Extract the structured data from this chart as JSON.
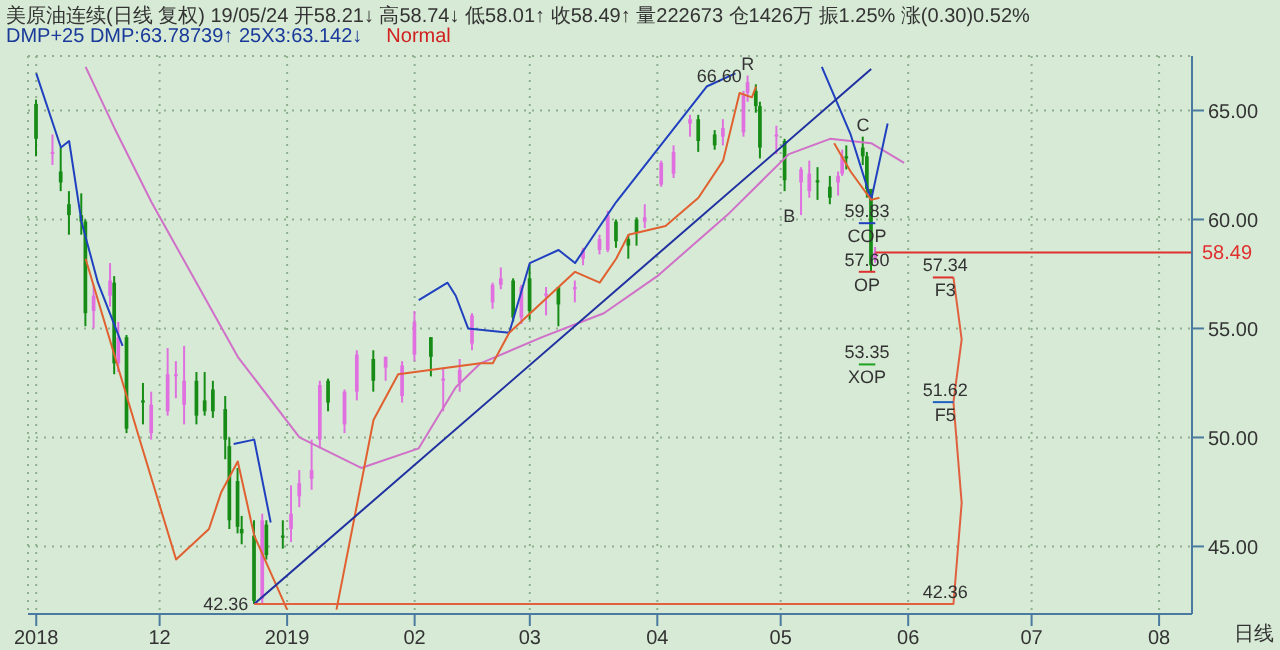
{
  "chart_data": {
    "type": "candlestick",
    "title": "美原油连续(日线 复权) 19/05/24 开58.21↓ 高58.74↓ 低58.01↑ 收58.49↑ 量222673 仓1426万 振1.25% 涨(0.30)0.52%",
    "subtitle": "DMP+25 DMP:63.78739↑ 25X3:63.142↓",
    "x": [
      "2018-11-01",
      "2018-11-05",
      "2018-11-07",
      "2018-11-09",
      "2018-11-12",
      "2018-11-13",
      "2018-11-15",
      "2018-11-19",
      "2018-11-20",
      "2018-11-21",
      "2018-11-23",
      "2018-11-27",
      "2018-11-29",
      "2018-12-03",
      "2018-12-05",
      "2018-12-07",
      "2018-12-10",
      "2018-12-12",
      "2018-12-14",
      "2018-12-17",
      "2018-12-18",
      "2018-12-20",
      "2018-12-21",
      "2018-12-24",
      "2018-12-26",
      "2018-12-27",
      "2018-12-31",
      "2019-01-02",
      "2019-01-04",
      "2019-01-07",
      "2019-01-09",
      "2019-01-11",
      "2019-01-15",
      "2019-01-18",
      "2019-01-22",
      "2019-01-25",
      "2019-01-29",
      "2019-02-01",
      "2019-02-05",
      "2019-02-08",
      "2019-02-12",
      "2019-02-15",
      "2019-02-20",
      "2019-02-22",
      "2019-02-25",
      "2019-02-27",
      "2019-03-01",
      "2019-03-05",
      "2019-03-08",
      "2019-03-12",
      "2019-03-14",
      "2019-03-18",
      "2019-03-20",
      "2019-03-22",
      "2019-03-25",
      "2019-03-27",
      "2019-03-29",
      "2019-04-02",
      "2019-04-05",
      "2019-04-09",
      "2019-04-11",
      "2019-04-15",
      "2019-04-17",
      "2019-04-22",
      "2019-04-23",
      "2019-04-25",
      "2019-04-26",
      "2019-04-30",
      "2019-05-02",
      "2019-05-06",
      "2019-05-08",
      "2019-05-10",
      "2019-05-13",
      "2019-05-15",
      "2019-05-16",
      "2019-05-17",
      "2019-05-21",
      "2019-05-22",
      "2019-05-23",
      "2019-05-24"
    ],
    "ohlc": [
      [
        65.3,
        65.5,
        62.9,
        63.7
      ],
      [
        63.1,
        63.9,
        62.5,
        63.1
      ],
      [
        62.2,
        63.3,
        61.3,
        61.7
      ],
      [
        60.7,
        61.3,
        59.3,
        60.2
      ],
      [
        60.2,
        61.2,
        59.3,
        59.9
      ],
      [
        59.9,
        60.0,
        55.1,
        55.7
      ],
      [
        55.8,
        57.0,
        55.0,
        56.5
      ],
      [
        56.5,
        58.0,
        56.0,
        57.2
      ],
      [
        57.1,
        57.4,
        52.9,
        53.4
      ],
      [
        53.4,
        55.3,
        53.0,
        54.6
      ],
      [
        54.6,
        54.7,
        50.2,
        50.4
      ],
      [
        51.7,
        52.5,
        50.6,
        51.6
      ],
      [
        50.2,
        52.1,
        49.9,
        51.5
      ],
      [
        51.2,
        54.1,
        51.0,
        52.9
      ],
      [
        52.9,
        53.5,
        51.8,
        52.9
      ],
      [
        51.5,
        54.2,
        50.6,
        52.6
      ],
      [
        52.6,
        53.0,
        50.6,
        51.0
      ],
      [
        51.7,
        53.0,
        51.0,
        51.2
      ],
      [
        52.2,
        52.6,
        50.9,
        51.2
      ],
      [
        51.3,
        51.9,
        49.0,
        49.9
      ],
      [
        49.6,
        50.0,
        45.8,
        46.2
      ],
      [
        48.0,
        48.6,
        45.6,
        45.9
      ],
      [
        45.8,
        46.4,
        45.1,
        45.6
      ],
      [
        45.5,
        46.2,
        42.36,
        42.5
      ],
      [
        42.6,
        46.5,
        42.4,
        46.2
      ],
      [
        46.0,
        46.2,
        44.4,
        44.6
      ],
      [
        45.5,
        46.2,
        44.9,
        45.4
      ],
      [
        45.8,
        47.8,
        45.2,
        46.5
      ],
      [
        47.3,
        48.5,
        46.8,
        47.9
      ],
      [
        48.1,
        49.9,
        47.6,
        48.5
      ],
      [
        49.9,
        52.6,
        49.5,
        52.4
      ],
      [
        52.6,
        52.7,
        51.2,
        51.6
      ],
      [
        50.6,
        52.2,
        50.2,
        52.1
      ],
      [
        52.1,
        54.0,
        51.7,
        53.8
      ],
      [
        53.6,
        54.0,
        52.1,
        52.6
      ],
      [
        53.2,
        53.7,
        52.6,
        53.7
      ],
      [
        51.9,
        53.5,
        51.6,
        53.3
      ],
      [
        53.8,
        55.8,
        53.5,
        55.3
      ],
      [
        54.6,
        54.6,
        52.8,
        53.7
      ],
      [
        52.7,
        53.2,
        51.2,
        52.7
      ],
      [
        52.5,
        53.6,
        52.1,
        53.1
      ],
      [
        54.3,
        55.7,
        54.0,
        55.6
      ],
      [
        56.2,
        57.1,
        55.9,
        57.0
      ],
      [
        57.0,
        57.8,
        56.8,
        57.3
      ],
      [
        57.2,
        57.3,
        55.3,
        55.5
      ],
      [
        55.5,
        57.0,
        55.2,
        56.9
      ],
      [
        57.3,
        57.9,
        55.4,
        55.8
      ],
      [
        56.6,
        56.9,
        55.6,
        56.6
      ],
      [
        56.9,
        56.9,
        55.1,
        56.1
      ],
      [
        56.8,
        57.2,
        56.2,
        56.9
      ],
      [
        58.2,
        58.7,
        57.9,
        58.6
      ],
      [
        58.6,
        59.3,
        58.4,
        59.1
      ],
      [
        58.6,
        60.4,
        58.5,
        60.2
      ],
      [
        59.9,
        60.0,
        58.7,
        59.0
      ],
      [
        59.1,
        59.3,
        58.2,
        58.8
      ],
      [
        60.0,
        60.1,
        58.8,
        59.4
      ],
      [
        59.9,
        60.7,
        59.6,
        60.1
      ],
      [
        61.6,
        62.7,
        61.5,
        62.6
      ],
      [
        62.1,
        63.4,
        61.9,
        63.1
      ],
      [
        64.4,
        64.8,
        63.8,
        64.6
      ],
      [
        64.6,
        64.8,
        63.1,
        63.6
      ],
      [
        63.9,
        64.1,
        63.2,
        63.4
      ],
      [
        63.8,
        64.6,
        63.4,
        64.2
      ],
      [
        64.0,
        65.9,
        63.8,
        65.7
      ],
      [
        65.8,
        66.6,
        65.4,
        66.3
      ],
      [
        65.9,
        66.2,
        64.9,
        65.2
      ],
      [
        65.2,
        65.4,
        62.8,
        63.3
      ],
      [
        63.9,
        64.3,
        63.0,
        63.9
      ],
      [
        63.6,
        63.7,
        61.3,
        61.8
      ],
      [
        61.7,
        62.4,
        60.2,
        62.3
      ],
      [
        61.3,
        62.7,
        61.0,
        62.1
      ],
      [
        61.8,
        62.4,
        60.9,
        61.7
      ],
      [
        61.5,
        62.0,
        60.7,
        61.0
      ],
      [
        61.7,
        62.2,
        61.1,
        62.0
      ],
      [
        62.1,
        63.2,
        62.0,
        62.9
      ],
      [
        62.9,
        63.4,
        62.3,
        62.8
      ],
      [
        63.3,
        63.8,
        62.5,
        62.9
      ],
      [
        62.9,
        63.1,
        61.0,
        61.4
      ],
      [
        61.4,
        61.4,
        57.6,
        57.9
      ],
      [
        58.21,
        58.74,
        58.01,
        58.49
      ]
    ],
    "colors": [
      "#168c16",
      "#e070e0",
      "#168c16",
      "#168c16",
      "#168c16",
      "#168c16",
      "#e070e0",
      "#e070e0",
      "#168c16",
      "#e070e0",
      "#168c16",
      "#168c16",
      "#e070e0",
      "#e070e0",
      "#e070e0",
      "#e070e0",
      "#168c16",
      "#168c16",
      "#168c16",
      "#168c16",
      "#168c16",
      "#168c16",
      "#168c16",
      "#168c16",
      "#e070e0",
      "#168c16",
      "#168c16",
      "#e070e0",
      "#e070e0",
      "#e070e0",
      "#e070e0",
      "#168c16",
      "#e070e0",
      "#e070e0",
      "#168c16",
      "#e070e0",
      "#e070e0",
      "#e070e0",
      "#168c16",
      "#e070e0",
      "#e070e0",
      "#e070e0",
      "#e070e0",
      "#e070e0",
      "#168c16",
      "#e070e0",
      "#168c16",
      "#e070e0",
      "#168c16",
      "#e070e0",
      "#e070e0",
      "#e070e0",
      "#e070e0",
      "#168c16",
      "#168c16",
      "#168c16",
      "#e070e0",
      "#e070e0",
      "#e070e0",
      "#e070e0",
      "#168c16",
      "#168c16",
      "#e070e0",
      "#e070e0",
      "#e070e0",
      "#168c16",
      "#168c16",
      "#e070e0",
      "#168c16",
      "#e070e0",
      "#e070e0",
      "#168c16",
      "#168c16",
      "#e070e0",
      "#e070e0",
      "#168c16",
      "#168c16",
      "#168c16",
      "#168c16",
      "#e070e0"
    ],
    "series": [
      {
        "type": "line",
        "color": "#d070c8",
        "x": [
          "2018-11-13",
          "2018-11-20",
          "2018-11-29",
          "2018-12-20",
          "2019-01-04",
          "2019-01-19",
          "2019-02-02",
          "2019-02-11",
          "2019-02-17",
          "2019-03-04",
          "2019-03-19",
          "2019-04-01",
          "2019-04-18",
          "2019-05-03",
          "2019-05-13",
          "2019-05-23",
          "2019-05-31"
        ],
        "values": [
          67,
          64.2,
          60.8,
          53.7,
          50,
          48.6,
          49.5,
          52.3,
          53.4,
          54.6,
          55.7,
          57.4,
          60.2,
          63,
          63.7,
          63.5,
          62.6
        ]
      },
      {
        "type": "line",
        "color": "#2040c0",
        "x": [
          "2018-11-01",
          "2018-11-07",
          "2018-11-09",
          "2018-11-12",
          "2018-11-16",
          "2018-11-22",
          "2018-12-01",
          "2018-12-19",
          "2018-12-24",
          "2018-12-28",
          "2019-01-15",
          "2019-02-02",
          "2019-02-09",
          "2019-02-11",
          "2019-02-14",
          "2019-02-24",
          "2019-03-01",
          "2019-03-08",
          "2019-03-12",
          "2019-03-22",
          "2019-04-13",
          "2019-04-20",
          "2019-05-01",
          "2019-05-11",
          "2019-05-18",
          "2019-05-23",
          "2019-05-27"
        ],
        "values": [
          66.7,
          63.3,
          63.6,
          59.9,
          57.1,
          54.2,
          null,
          49.7,
          49.9,
          46.1,
          null,
          56.3,
          57.1,
          56.5,
          55,
          54.8,
          58,
          58.6,
          58,
          60.8,
          66.1,
          66.7,
          null,
          67,
          63.9,
          60.9,
          64.4
        ]
      },
      {
        "type": "line",
        "color": "#e06030",
        "x": [
          "2018-11-13",
          "2018-11-26",
          "2018-12-05",
          "2018-12-13",
          "2018-12-16",
          "2018-12-20",
          "2018-12-24",
          "2019-01-01",
          "2019-01-07",
          "2019-01-13",
          "2019-01-22",
          "2019-01-28",
          "2019-02-17",
          "2019-02-20",
          "2019-02-24",
          "2019-03-12",
          "2019-03-18",
          "2019-03-22",
          "2019-03-25",
          "2019-04-03",
          "2019-04-11",
          "2019-04-17",
          "2019-04-21",
          "2019-04-24",
          "2019-04-25",
          "2019-05-05",
          "2019-05-14",
          "2019-05-18",
          "2019-05-23",
          "2019-05-25"
        ],
        "values": [
          58.2,
          50,
          44.4,
          45.8,
          47.5,
          48.9,
          45.5,
          42.1,
          null,
          42.1,
          50.8,
          52.9,
          53.4,
          53.4,
          54.8,
          57.6,
          57.1,
          58.2,
          59.3,
          59.7,
          61,
          62.7,
          65.8,
          65.6,
          66.1,
          null,
          63.5,
          62.2,
          60.9,
          61
        ]
      },
      {
        "type": "line",
        "color": "#2030a0",
        "x": [
          "2018-12-24",
          "2019-05-23"
        ],
        "values": [
          42.36,
          66.9
        ]
      },
      {
        "type": "line",
        "color": "#e06040",
        "x": [
          "2018-12-24",
          "2019-06-12",
          "2019-06-14",
          "2019-06-12",
          "2019-06-14",
          "2019-06-12"
        ],
        "values": [
          42.36,
          42.36,
          47,
          51.62,
          54.5,
          57.34
        ]
      },
      {
        "type": "line",
        "color": "#2040c0",
        "x": [
          "2019-05-20",
          "2019-05-24"
        ],
        "values": [
          59.83,
          59.83
        ]
      },
      {
        "type": "line",
        "color": "#e03030",
        "x": [
          "2019-05-20",
          "2019-05-24"
        ],
        "values": [
          57.6,
          57.6
        ]
      },
      {
        "type": "line",
        "color": "#20a020",
        "x": [
          "2019-05-20",
          "2019-05-24"
        ],
        "values": [
          53.35,
          53.35
        ]
      },
      {
        "type": "line",
        "color": "#e03030",
        "x": [
          "2019-06-07",
          "2019-06-12"
        ],
        "values": [
          57.34,
          57.34
        ]
      },
      {
        "type": "line",
        "color": "#2060c0",
        "x": [
          "2019-06-07",
          "2019-06-12"
        ],
        "values": [
          51.62,
          51.62
        ]
      }
    ],
    "xlim": [
      "2018-10-30",
      "2019-08-09"
    ],
    "xticks": [
      {
        "value": "2018-11-01",
        "label": "2018"
      },
      {
        "value": "2018-12-01",
        "label": "12"
      },
      {
        "value": "2019-01-01",
        "label": "2019"
      },
      {
        "value": "2019-02-01",
        "label": "02"
      },
      {
        "value": "2019-03-01",
        "label": "03"
      },
      {
        "value": "2019-04-01",
        "label": "04"
      },
      {
        "value": "2019-05-01",
        "label": "05"
      },
      {
        "value": "2019-06-01",
        "label": "06"
      },
      {
        "value": "2019-07-01",
        "label": "07"
      },
      {
        "value": "2019-08-01",
        "label": "08"
      }
    ],
    "ylim": [
      41.9,
      67.5
    ],
    "yticks": [
      {
        "value": 45,
        "label": "45.00"
      },
      {
        "value": 50,
        "label": "50.00"
      },
      {
        "value": 55,
        "label": "55.00"
      },
      {
        "value": 60,
        "label": "60.00"
      },
      {
        "value": 65,
        "label": "65.00"
      }
    ],
    "ref_lines": [
      {
        "axis": "y",
        "value": 58.49,
        "label": "58.49",
        "color": "#e03030"
      }
    ],
    "grid": true,
    "marker": "none",
    "line_style": "solid",
    "annotations": [
      "Normal",
      "日线",
      {
        "text": "R",
        "x": "2019-04-23",
        "y": 66.6
      },
      {
        "text": "66.60",
        "x": "2019-04-23",
        "y": 66.6
      },
      {
        "text": "42.36",
        "x": "2018-12-24",
        "y": 42.36
      },
      {
        "text": "B",
        "x": "2019-05-06",
        "y": 60.2
      },
      {
        "text": "C",
        "x": "2019-05-21",
        "y": 63.8
      },
      {
        "text": "59.83",
        "x": "2019-05-22",
        "y": 59.83
      },
      {
        "text": "COP",
        "x": "2019-05-22",
        "y": 59.83
      },
      {
        "text": "57.60",
        "x": "2019-05-22",
        "y": 57.6
      },
      {
        "text": "OP",
        "x": "2019-05-22",
        "y": 57.6
      },
      {
        "text": "53.35",
        "x": "2019-05-22",
        "y": 53.35
      },
      {
        "text": "XOP",
        "x": "2019-05-22",
        "y": 53.35
      },
      {
        "text": "57.34",
        "x": "2019-06-10",
        "y": 57.34
      },
      {
        "text": "F3",
        "x": "2019-06-10",
        "y": 57.34
      },
      {
        "text": "51.62",
        "x": "2019-06-10",
        "y": 51.62
      },
      {
        "text": "F5",
        "x": "2019-06-10",
        "y": 51.62
      },
      {
        "text": "42.36",
        "x": "2019-06-10",
        "y": 42.36
      }
    ]
  }
}
